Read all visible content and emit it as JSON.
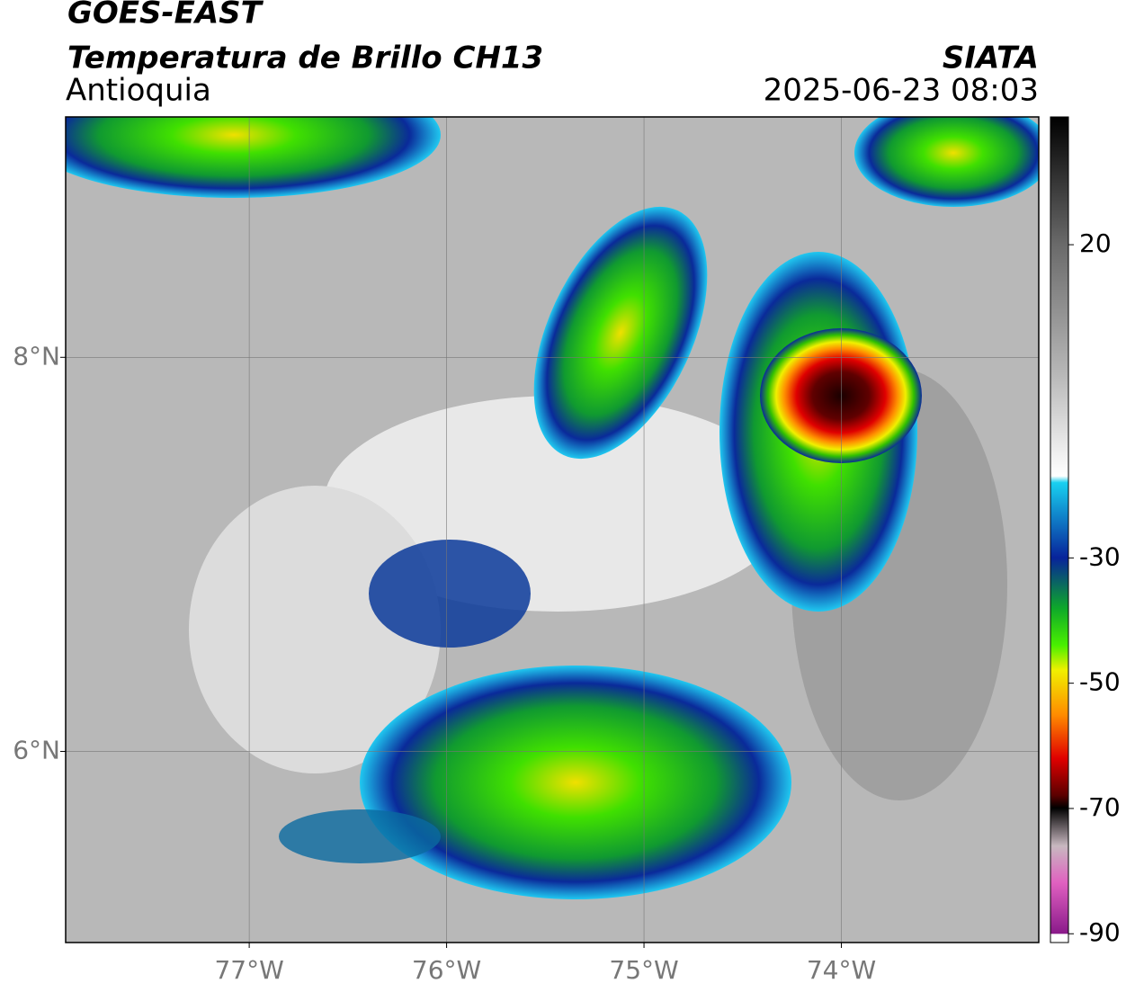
{
  "header": {
    "title": "GOES-EAST",
    "subtitle": "Temperatura de Brillo CH13",
    "region": "Antioquia",
    "source": "SIATA",
    "datetime": "2025-06-23 08:03"
  },
  "map": {
    "xlim": [
      -77.93,
      -73.0
    ],
    "ylim": [
      5.03,
      9.22
    ],
    "xticks": [
      {
        "value": -77,
        "label": "77°W"
      },
      {
        "value": -76,
        "label": "76°W"
      },
      {
        "value": -75,
        "label": "75°W"
      },
      {
        "value": -74,
        "label": "74°W"
      }
    ],
    "yticks": [
      {
        "value": 8,
        "label": "8°N"
      },
      {
        "value": 6,
        "label": "6°N"
      }
    ],
    "grid": true
  },
  "colorbar": {
    "clim": [
      -91.4,
      40.4
    ],
    "ticks": [
      20,
      -30,
      -50,
      -70,
      -90
    ]
  }
}
